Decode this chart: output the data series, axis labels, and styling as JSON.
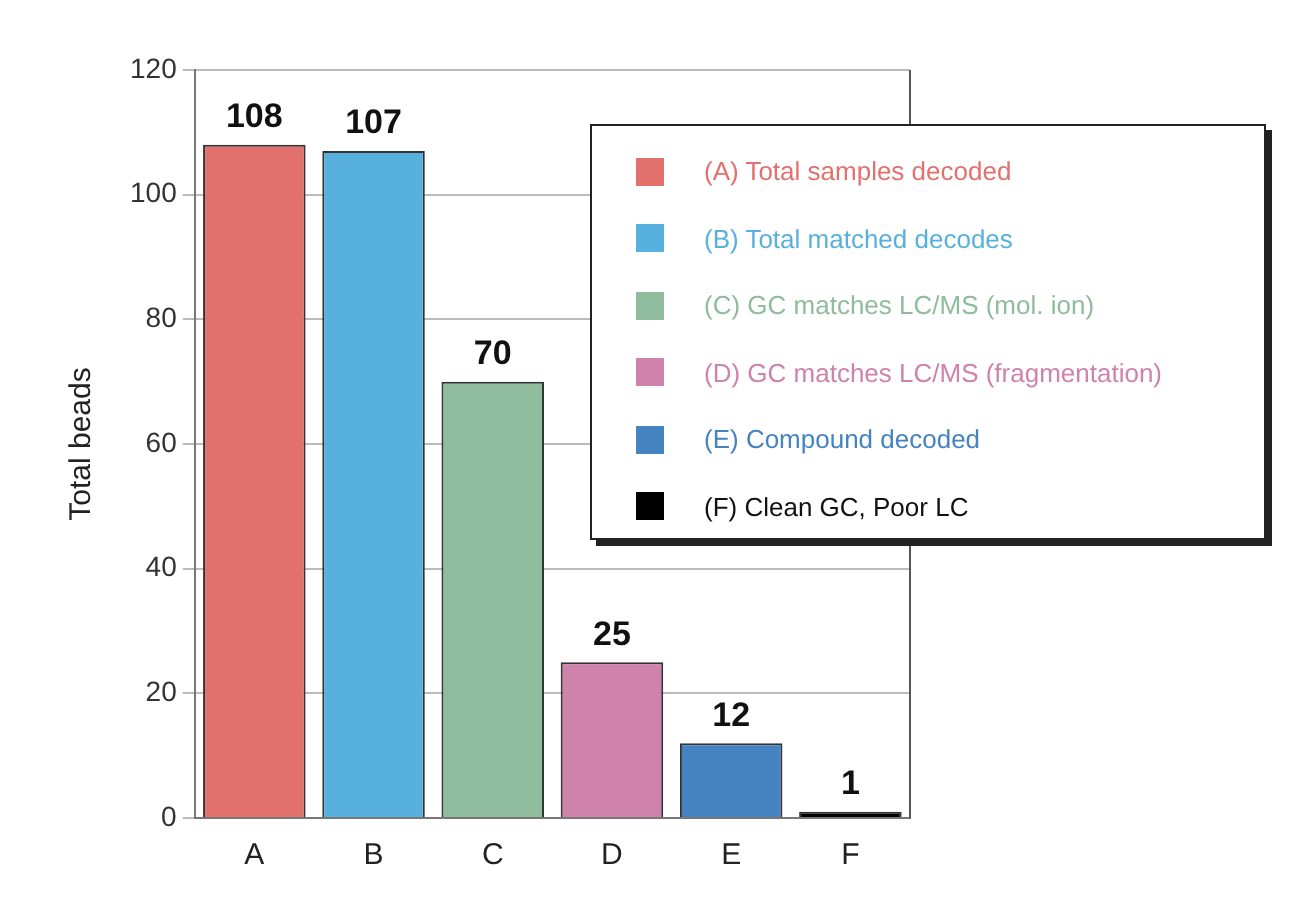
{
  "chart_data": {
    "type": "bar",
    "ylabel": "Total beads",
    "categories": [
      "A",
      "B",
      "C",
      "D",
      "E",
      "F"
    ],
    "series": [
      {
        "name": "(A) Total samples decoded",
        "color": "#e2706c",
        "values": [
          108,
          null,
          null,
          null,
          null,
          null
        ]
      },
      {
        "name": "(B) Total matched decodes",
        "color": "#58b0df",
        "values": [
          null,
          107,
          null,
          null,
          null,
          null
        ]
      },
      {
        "name": "(C) GC matches LC/MS (mol. ion)",
        "color": "#8fbc9c",
        "values": [
          null,
          null,
          70,
          null,
          null,
          null
        ]
      },
      {
        "name": "(D) GC matches LC/MS (fragmentation)",
        "color": "#cf82ac",
        "values": [
          null,
          null,
          null,
          25,
          null,
          null
        ]
      },
      {
        "name": "(E) Compound decoded",
        "color": "#4583c2",
        "values": [
          null,
          null,
          null,
          null,
          12,
          null
        ]
      },
      {
        "name": "(F) Clean GC, Poor LC",
        "color": "#000000",
        "values": [
          null,
          null,
          null,
          null,
          null,
          1
        ]
      }
    ],
    "ylim": [
      0,
      120
    ],
    "yticks": [
      0,
      20,
      40,
      60,
      80,
      100,
      120
    ],
    "grid": "y",
    "legend": "top right",
    "data_labels": true
  }
}
